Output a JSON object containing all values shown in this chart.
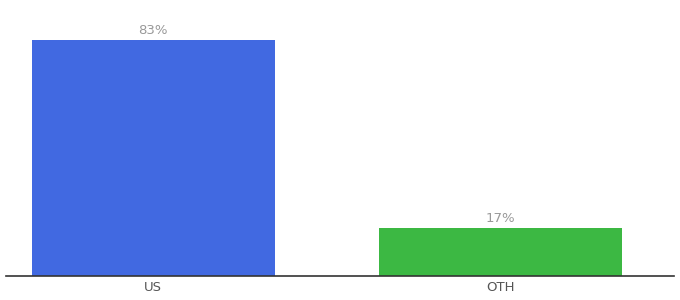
{
  "categories": [
    "US",
    "OTH"
  ],
  "values": [
    83,
    17
  ],
  "bar_colors": [
    "#4169E1",
    "#3CB843"
  ],
  "labels": [
    "83%",
    "17%"
  ],
  "ylim": [
    0,
    95
  ],
  "background_color": "#ffffff",
  "label_color": "#999999",
  "bar_width": 0.28,
  "label_fontsize": 9.5,
  "tick_fontsize": 9.5,
  "x_positions": [
    0.22,
    0.62
  ]
}
